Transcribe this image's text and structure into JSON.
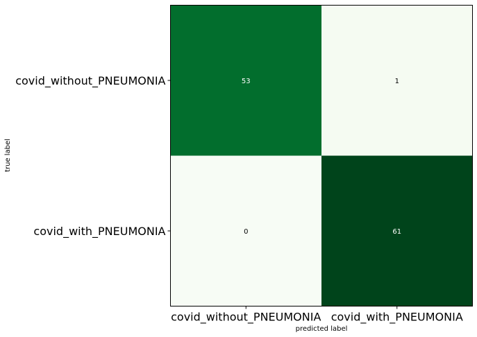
{
  "chart_data": {
    "type": "heatmap",
    "title": "",
    "xlabel": "predicted label",
    "ylabel": "true label",
    "x_categories": [
      "covid_without_PNEUMONIA",
      "covid_with_PNEUMONIA"
    ],
    "y_categories": [
      "covid_without_PNEUMONIA",
      "covid_with_PNEUMONIA"
    ],
    "matrix": [
      [
        53,
        1
      ],
      [
        0,
        61
      ]
    ],
    "colormap": "Greens",
    "colors": {
      "low": "#f7fcf5",
      "high": "#00441b",
      "text_dark": "#000000",
      "text_light": "#ffffff"
    },
    "grid": false
  }
}
